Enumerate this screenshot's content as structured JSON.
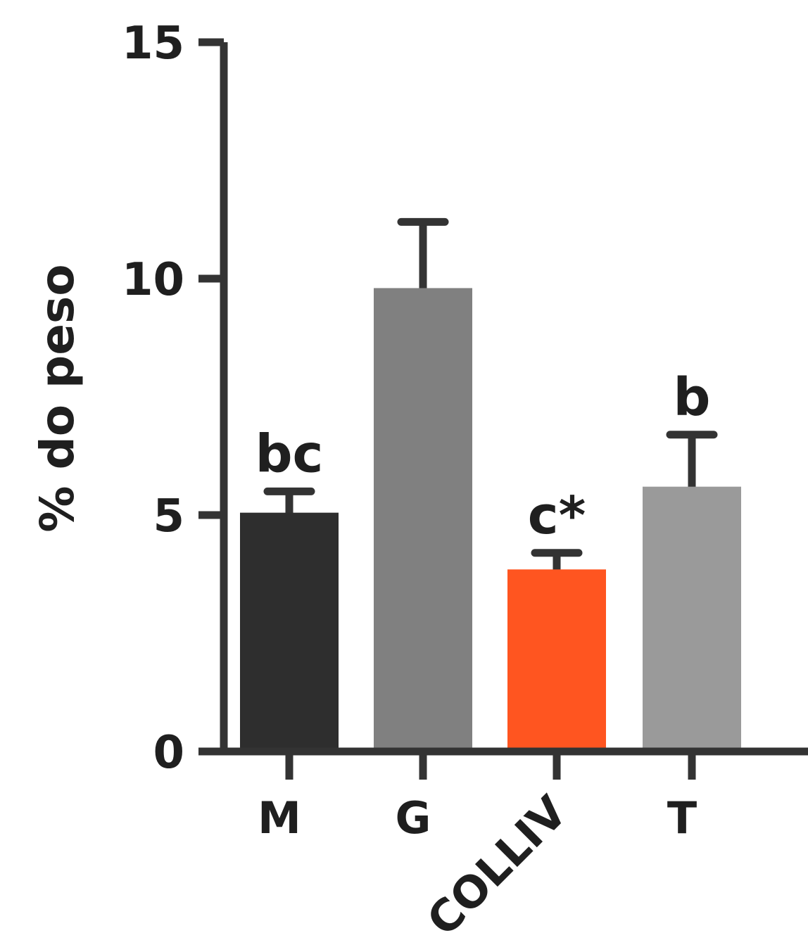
{
  "chart_data": {
    "type": "bar",
    "title": "",
    "xlabel": "",
    "ylabel": "% do peso",
    "ylim": [
      0,
      15
    ],
    "yticks": [
      "0",
      "5",
      "10",
      "15"
    ],
    "grid": false,
    "categories": [
      "M",
      "G",
      "COLLIV",
      "T"
    ],
    "values": [
      5.05,
      9.8,
      3.85,
      5.6
    ],
    "errors": [
      0.45,
      1.4,
      0.35,
      1.1
    ],
    "significance": [
      "bc",
      "",
      "c*",
      "b"
    ],
    "colors": [
      "#2e2e2e",
      "#808080",
      "#ff5520",
      "#9a9a9a"
    ],
    "axis_color": "#333333",
    "text_color": "#1f1f1f"
  }
}
